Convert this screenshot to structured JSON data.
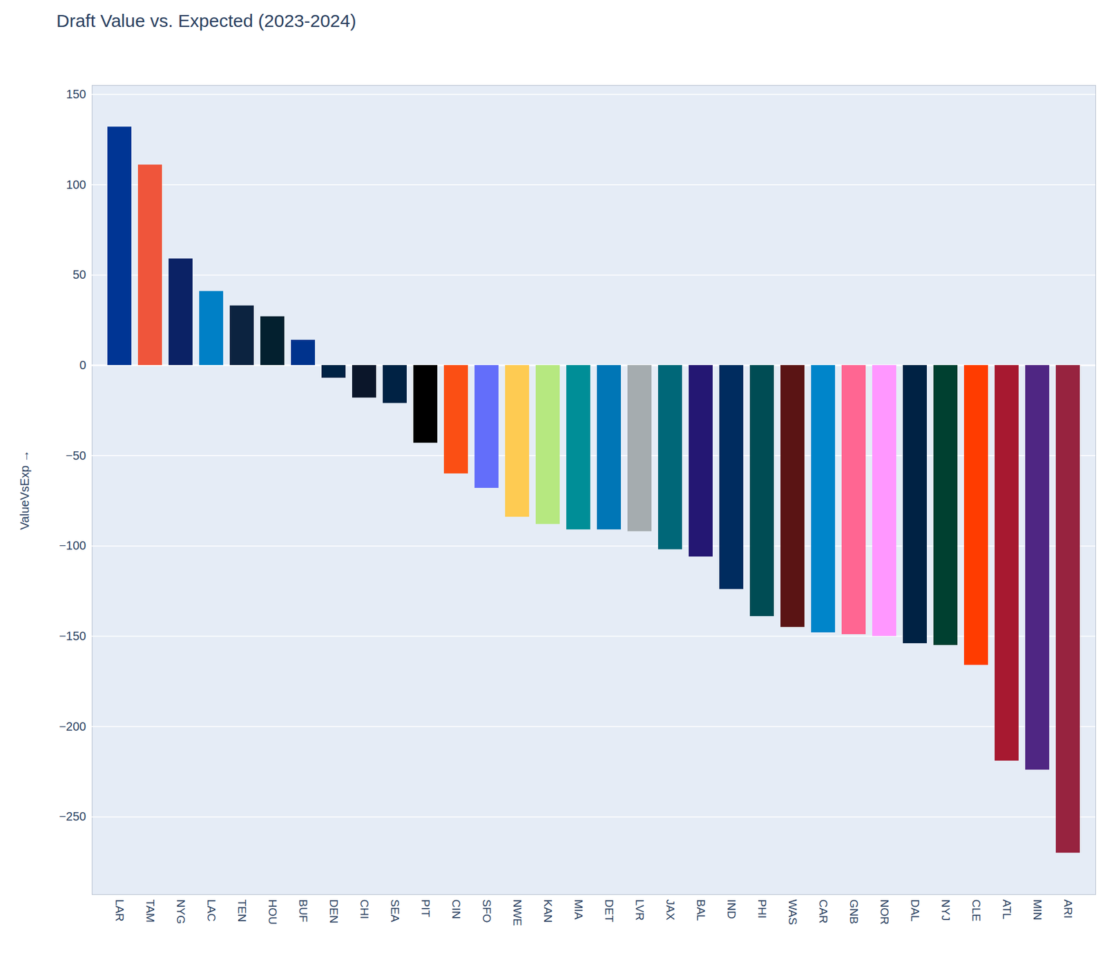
{
  "chart_data": {
    "type": "bar",
    "title": "Draft Value vs. Expected (2023-2024)",
    "y_label": "ValueVsExp",
    "categories": [
      "LAR",
      "TAM",
      "NYG",
      "LAC",
      "TEN",
      "HOU",
      "BUF",
      "DEN",
      "CHI",
      "SEA",
      "PIT",
      "CIN",
      "SFO",
      "NWE",
      "KAN",
      "MIA",
      "DET",
      "LVR",
      "JAX",
      "BAL",
      "IND",
      "PHI",
      "WAS",
      "CAR",
      "GNB",
      "NOR",
      "DAL",
      "NYJ",
      "CLE",
      "ATL",
      "MIN",
      "ARI"
    ],
    "values": [
      132,
      111,
      59,
      41,
      33,
      27,
      14,
      -7,
      -18,
      -21,
      -43,
      -60,
      -68,
      -84,
      -88,
      -91,
      -91,
      -92,
      -102,
      -106,
      -124,
      -139,
      -145,
      -148,
      -149,
      -150,
      -154,
      -155,
      -166,
      -219,
      -224,
      -270
    ],
    "colors": [
      "#003594",
      "#EF553B",
      "#0B2265",
      "#0080C6",
      "#0C2340",
      "#03202F",
      "#00338D",
      "#002244",
      "#0B162A",
      "#002244",
      "#000000",
      "#FB4F14",
      "#636EFA",
      "#FECB52",
      "#B6E880",
      "#008E97",
      "#0076B6",
      "#A5ACAF",
      "#006778",
      "#241773",
      "#002C5F",
      "#004C54",
      "#5A1414",
      "#0085CA",
      "#FF6692",
      "#FF97FF",
      "#002244",
      "#004030",
      "#FF3C00",
      "#A71930",
      "#4F2683",
      "#97233F"
    ],
    "ylim": [
      -293,
      155
    ],
    "yticks": [
      -250,
      -200,
      -150,
      -100,
      -50,
      0,
      50,
      100,
      150
    ],
    "grid": true
  }
}
